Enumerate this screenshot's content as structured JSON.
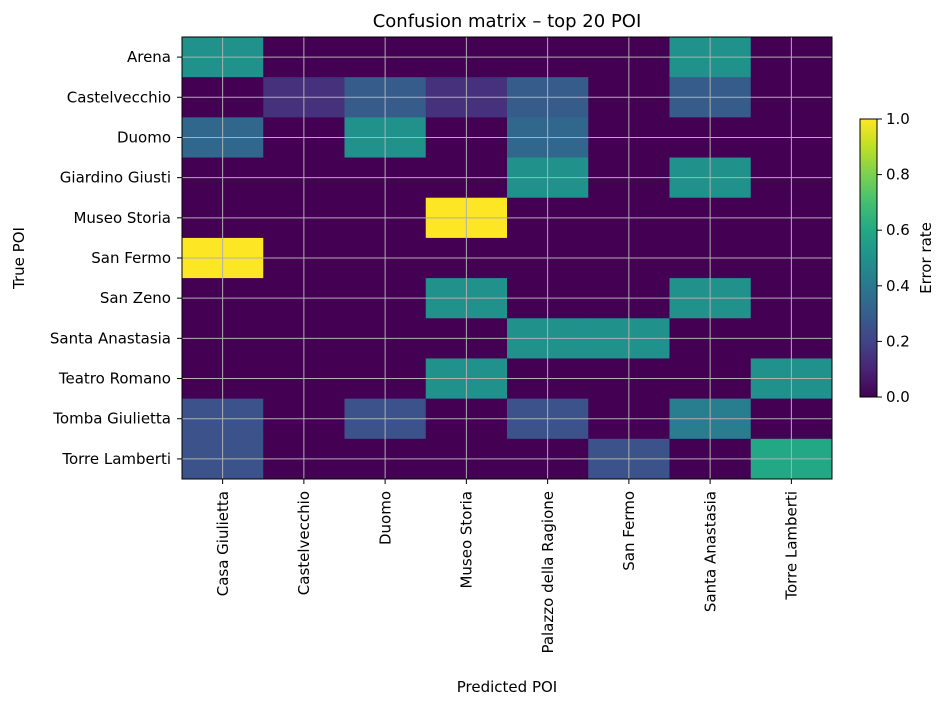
{
  "chart_data": {
    "type": "heatmap",
    "title": "Confusion matrix – top 20 POI",
    "xlabel": "Predicted POI",
    "ylabel": "True POI",
    "x_categories": [
      "Casa Giulietta",
      "Castelvecchio",
      "Duomo",
      "Museo Storia",
      "Palazzo della Ragione",
      "San Fermo",
      "Santa Anastasia",
      "Torre Lamberti"
    ],
    "y_categories": [
      "Arena",
      "Castelvecchio",
      "Duomo",
      "Giardino Giusti",
      "Museo Storia",
      "San Fermo",
      "San Zeno",
      "Santa Anastasia",
      "Teatro Romano",
      "Tomba Giulietta",
      "Torre Lamberti"
    ],
    "values": [
      [
        0.5,
        0,
        0,
        0,
        0,
        0,
        0.5,
        0
      ],
      [
        0,
        0.14,
        0.29,
        0.14,
        0.29,
        0,
        0.29,
        0
      ],
      [
        0.33,
        0,
        0.5,
        0,
        0.33,
        0,
        0,
        0
      ],
      [
        0,
        0,
        0,
        0,
        0.5,
        0,
        0.5,
        0
      ],
      [
        0,
        0,
        0,
        1.0,
        0,
        0,
        0,
        0
      ],
      [
        1.0,
        0,
        0,
        0,
        0,
        0,
        0,
        0
      ],
      [
        0,
        0,
        0,
        0.5,
        0,
        0,
        0.5,
        0
      ],
      [
        0,
        0,
        0,
        0,
        0.5,
        0.5,
        0,
        0
      ],
      [
        0,
        0,
        0,
        0.5,
        0,
        0,
        0,
        0.5
      ],
      [
        0.25,
        0,
        0.25,
        0,
        0.25,
        0,
        0.42,
        0
      ],
      [
        0.25,
        0,
        0,
        0,
        0,
        0.25,
        0,
        0.6
      ]
    ],
    "colormap": "viridis",
    "colorbar": {
      "label": "Error rate",
      "range": [
        0,
        1
      ],
      "ticks": [
        "0.0",
        "0.2",
        "0.4",
        "0.6",
        "0.8",
        "1.0"
      ]
    },
    "grid": true,
    "grid_color": "#b0b0b0"
  }
}
